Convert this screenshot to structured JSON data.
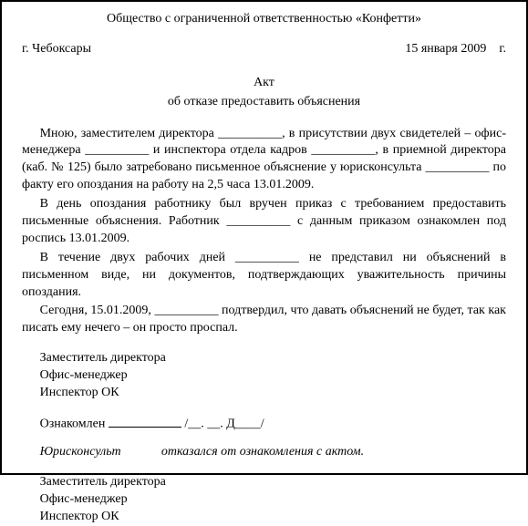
{
  "org_name": "Общество с ограниченной ответственностью «Конфетти»",
  "city": "г. Чебоксары",
  "date": "15 января 2009",
  "date_suffix": "г.",
  "title": "Акт",
  "subtitle": "об отказе предоставить объяснения",
  "p1": "Мною, заместителем директора __________, в присутствии двух свидетелей – офис-менеджера __________ и инспектора отдела кадров __________, в приемной директора (каб. № 125) было затребовано письменное объяснение у юрисконсульта __________ по факту его опоздания на работу на 2,5 часа 13.01.2009.",
  "p2": "В день опоздания работнику был вручен приказ с требованием предоставить письменные объяснения. Работник __________ с данным приказом ознакомлен под роспись 13.01.2009.",
  "p3": "В течение двух рабочих дней __________ не представил ни объяснений в письменном виде, ни документов, подтверждающих уважительность причины опоздания.",
  "p4": "Сегодня, 15.01.2009, __________ подтвердил, что давать объяснений не будет, так как писать ему нечего – он просто проспал.",
  "roles": {
    "deputy": "Заместитель директора",
    "office_mgr": "Офис-менеджер",
    "inspector": "Инспектор ОК"
  },
  "ack_label": "Ознакомлен",
  "ack_name": "/__. __. Д____/",
  "refusal_note_pre": "Юрисконсульт ",
  "refusal_note_post": " отказался от ознакомления с актом.",
  "sig_placeholder": "/__. __. ________/"
}
